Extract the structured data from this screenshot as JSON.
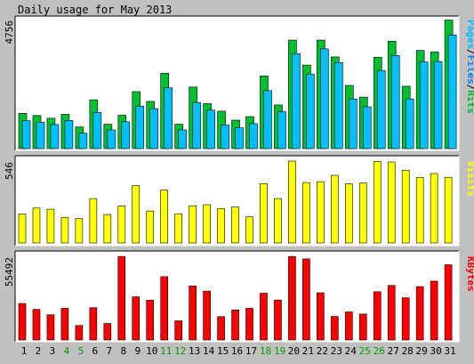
{
  "title": "Daily usage for May 2013",
  "colors": {
    "background": "#C0C0C0",
    "panel": "#FFFFFF",
    "hits": "#00C030",
    "files": "#0080FF",
    "pages": "#00C0FF",
    "visits": "#FFFF00",
    "kbytes": "#FF0000",
    "weekend_label": "#00A000",
    "weekday_label": "#000000"
  },
  "chart_data": {
    "type": "bar",
    "title": "Daily usage for May 2013",
    "categories": [
      "1",
      "2",
      "3",
      "4",
      "5",
      "6",
      "7",
      "8",
      "9",
      "10",
      "11",
      "12",
      "13",
      "14",
      "15",
      "16",
      "17",
      "18",
      "19",
      "20",
      "21",
      "22",
      "23",
      "24",
      "25",
      "26",
      "27",
      "28",
      "29",
      "30",
      "31"
    ],
    "weekend_days": [
      "4",
      "5",
      "11",
      "12",
      "18",
      "19",
      "25",
      "26"
    ],
    "panels": [
      {
        "id": "hits-files-pages",
        "max_label": "4756",
        "ylim": [
          0,
          4756
        ],
        "legend": [
          {
            "label": "Pages",
            "color": "#00C0FF"
          },
          {
            "label": "Files",
            "color": "#0080FF"
          },
          {
            "label": "Hits",
            "color": "#00C030"
          }
        ],
        "series": [
          {
            "name": "Hits",
            "values": [
              1300,
              1220,
              1120,
              1270,
              800,
              1800,
              900,
              1230,
              2100,
              1740,
              2780,
              900,
              2270,
              1660,
              1380,
              1050,
              1180,
              2680,
              1610,
              4000,
              3080,
              4000,
              3380,
              2330,
              1900,
              3370,
              3960,
              2300,
              3620,
              3560,
              4740
            ]
          },
          {
            "name": "Files",
            "values": [
              1030,
              970,
              890,
              1040,
              570,
              1330,
              690,
              990,
              1560,
              1470,
              2240,
              690,
              1700,
              1420,
              870,
              770,
              920,
              2140,
              1360,
              3500,
              2740,
              3680,
              3170,
              1830,
              1540,
              2880,
              3430,
              1830,
              3200,
              3210,
              4190
            ]
          },
          {
            "name": "Pages",
            "values": [
              1030,
              970,
              890,
              1040,
              570,
              1330,
              690,
              990,
              1560,
              1470,
              2240,
              690,
              1700,
              1420,
              870,
              770,
              920,
              2140,
              1360,
              3500,
              2740,
              3680,
              3170,
              1830,
              1540,
              2880,
              3430,
              1830,
              3200,
              3210,
              4190
            ]
          }
        ]
      },
      {
        "id": "visits",
        "max_label": "546",
        "ylim": [
          0,
          546
        ],
        "legend": [
          {
            "label": "Visits",
            "color": "#FFFF00"
          }
        ],
        "series": [
          {
            "name": "Visits",
            "values": [
              193,
              233,
              225,
              171,
              162,
              296,
              190,
              247,
              383,
              213,
              353,
              195,
              248,
              255,
              229,
              241,
              174,
              396,
              296,
              546,
              403,
              409,
              451,
              394,
              400,
              544,
              540,
              485,
              437,
              463,
              438
            ]
          }
        ]
      },
      {
        "id": "kbytes",
        "max_label": "55492",
        "ylim": [
          0,
          55492
        ],
        "legend": [
          {
            "label": "KBytes",
            "color": "#FF0000"
          }
        ],
        "series": [
          {
            "name": "KBytes",
            "values": [
              24200,
              20300,
              16700,
              21000,
              9600,
              21400,
              10900,
              55400,
              28600,
              26400,
              42000,
              12700,
              35800,
              32400,
              15500,
              19900,
              21000,
              31000,
              26500,
              55400,
              53800,
              31300,
              15600,
              18600,
              17200,
              32000,
              36200,
              28000,
              35400,
              39000,
              49900
            ]
          }
        ]
      }
    ]
  }
}
